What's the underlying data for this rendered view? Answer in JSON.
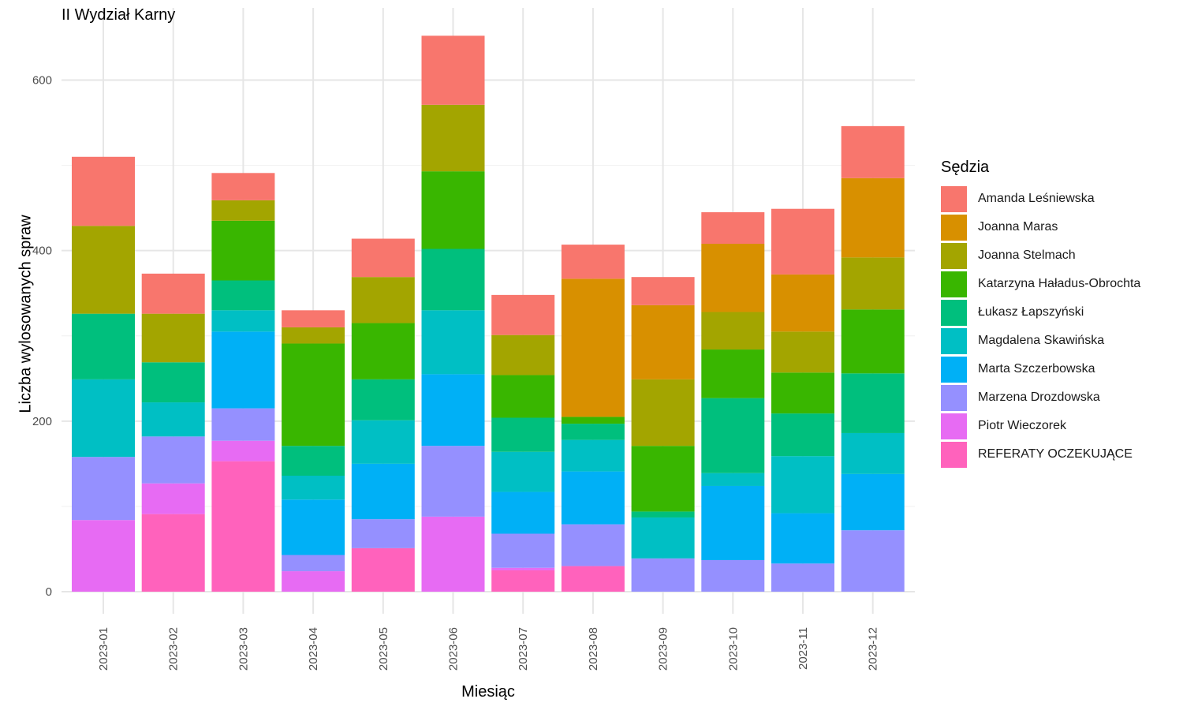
{
  "chart_data": {
    "type": "bar",
    "stacked": true,
    "title": "II Wydział Karny",
    "xlabel": "Miesiąc",
    "ylabel": "Liczba wylosowanych spraw",
    "ylim": [
      0,
      650
    ],
    "yticks": [
      0,
      200,
      400,
      600
    ],
    "grid": true,
    "legend_title": "Sędzia",
    "legend_position": "right",
    "categories": [
      "2023-01",
      "2023-02",
      "2023-03",
      "2023-04",
      "2023-05",
      "2023-06",
      "2023-07",
      "2023-08",
      "2023-09",
      "2023-10",
      "2023-11",
      "2023-12"
    ],
    "series": [
      {
        "name": "Amanda Leśniewska",
        "color": "#F8766D",
        "values": [
          81,
          47,
          32,
          20,
          45,
          81,
          47,
          40,
          33,
          37,
          77,
          61
        ]
      },
      {
        "name": "Joanna Maras",
        "color": "#D89000",
        "values": [
          0,
          0,
          0,
          0,
          0,
          0,
          0,
          162,
          87,
          80,
          67,
          93
        ]
      },
      {
        "name": "Joanna Stelmach",
        "color": "#A3A500",
        "values": [
          103,
          57,
          24,
          19,
          54,
          78,
          47,
          0,
          78,
          44,
          48,
          61
        ]
      },
      {
        "name": "Katarzyna Haładus-Obrochta",
        "color": "#39B600",
        "values": [
          0,
          0,
          70,
          120,
          66,
          91,
          50,
          8,
          77,
          57,
          48,
          75
        ]
      },
      {
        "name": "Łukasz Łapszyński",
        "color": "#00BF7D",
        "values": [
          77,
          47,
          35,
          35,
          48,
          72,
          40,
          19,
          7,
          88,
          50,
          70
        ]
      },
      {
        "name": "Magdalena Skawińska",
        "color": "#00BFC4",
        "values": [
          91,
          40,
          25,
          28,
          51,
          75,
          47,
          37,
          48,
          15,
          67,
          48
        ]
      },
      {
        "name": "Marta Szczerbowska",
        "color": "#00B0F6",
        "values": [
          0,
          0,
          90,
          65,
          65,
          84,
          49,
          62,
          0,
          87,
          59,
          66
        ]
      },
      {
        "name": "Marzena Drozdowska",
        "color": "#9590FF",
        "values": [
          74,
          55,
          38,
          19,
          34,
          83,
          40,
          49,
          39,
          37,
          33,
          72
        ]
      },
      {
        "name": "Piotr Wieczorek",
        "color": "#E76BF3",
        "values": [
          84,
          36,
          24,
          24,
          0,
          88,
          3,
          0,
          0,
          0,
          0,
          0
        ]
      },
      {
        "name": "REFERATY OCZEKUJĄCE",
        "color": "#FF62BC",
        "values": [
          0,
          91,
          153,
          0,
          51,
          0,
          25,
          30,
          0,
          0,
          0,
          0
        ]
      }
    ]
  }
}
